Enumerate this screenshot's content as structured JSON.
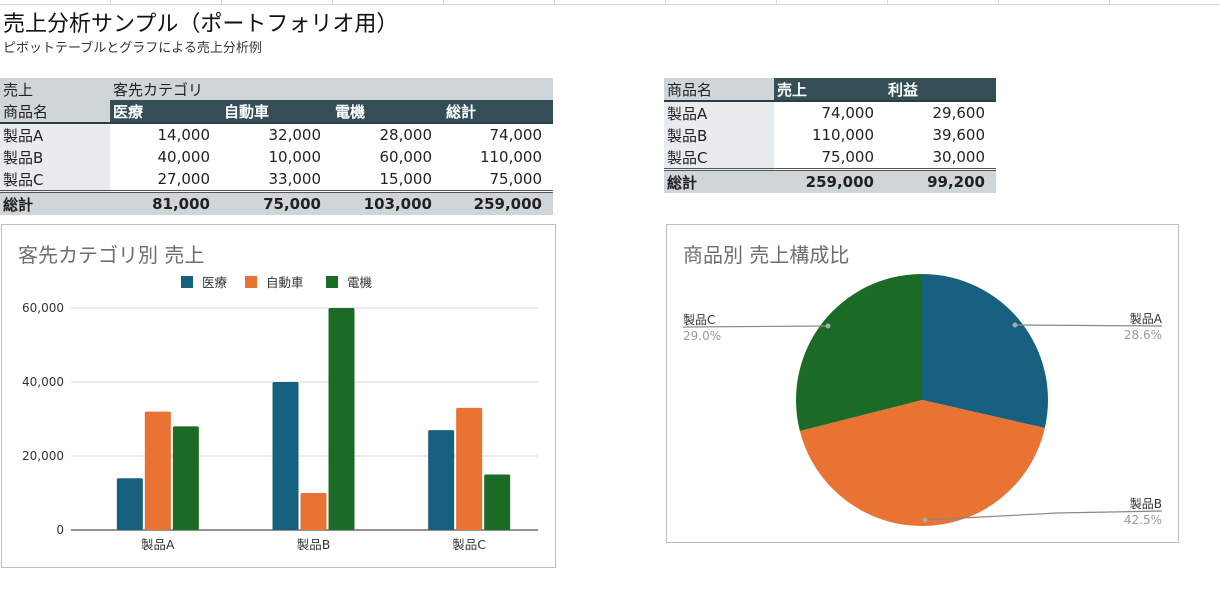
{
  "page": {
    "title": "売上分析サンプル（ポートフォリオ用）",
    "subtitle": "ピボットテーブルとグラフによる売上分析例"
  },
  "pivot1": {
    "corner_label": "売上",
    "column_field": "客先カテゴリ",
    "row_field": "商品名",
    "columns": [
      "医療",
      "自動車",
      "電機",
      "総計"
    ],
    "rows": [
      {
        "label": "製品A",
        "values": [
          "14,000",
          "32,000",
          "28,000",
          "74,000"
        ]
      },
      {
        "label": "製品B",
        "values": [
          "40,000",
          "10,000",
          "60,000",
          "110,000"
        ]
      },
      {
        "label": "製品C",
        "values": [
          "27,000",
          "33,000",
          "15,000",
          "75,000"
        ]
      }
    ],
    "total": {
      "label": "総計",
      "values": [
        "81,000",
        "75,000",
        "103,000",
        "259,000"
      ]
    }
  },
  "pivot2": {
    "row_field": "商品名",
    "columns": [
      "売上",
      "利益"
    ],
    "rows": [
      {
        "label": "製品A",
        "values": [
          "74,000",
          "29,600"
        ]
      },
      {
        "label": "製品B",
        "values": [
          "110,000",
          "39,600"
        ]
      },
      {
        "label": "製品C",
        "values": [
          "75,000",
          "30,000"
        ]
      }
    ],
    "total": {
      "label": "総計",
      "values": [
        "259,000",
        "99,200"
      ]
    }
  },
  "colors": {
    "medical": "#17607f",
    "auto": "#e87333",
    "electric": "#1b6b27",
    "header_bg": "#344d57",
    "label_bg": "#cfd5d8"
  },
  "chart_data": [
    {
      "type": "bar",
      "title": "客先カテゴリ別 売上",
      "categories": [
        "製品A",
        "製品B",
        "製品C"
      ],
      "series": [
        {
          "name": "医療",
          "values": [
            14000,
            40000,
            27000
          ],
          "color": "#17607f"
        },
        {
          "name": "自動車",
          "values": [
            32000,
            10000,
            33000
          ],
          "color": "#e87333"
        },
        {
          "name": "電機",
          "values": [
            28000,
            60000,
            15000
          ],
          "color": "#1b6b27"
        }
      ],
      "xlabel": "",
      "ylabel": "",
      "ylim": [
        0,
        60000
      ],
      "yticks": [
        "0",
        "20,000",
        "40,000",
        "60,000"
      ],
      "grid": true,
      "legend_position": "top"
    },
    {
      "type": "pie",
      "title": "商品別 売上構成比",
      "labels": [
        "製品A",
        "製品B",
        "製品C"
      ],
      "values": [
        74000,
        110000,
        75000
      ],
      "percent_labels": [
        "28.6%",
        "42.5%",
        "29.0%"
      ],
      "colors": [
        "#17607f",
        "#e87333",
        "#1b6b27"
      ]
    }
  ]
}
